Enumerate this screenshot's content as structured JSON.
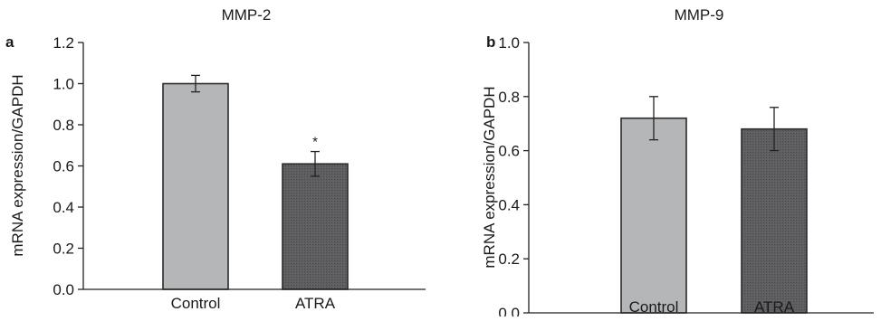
{
  "chart_data": [
    {
      "panel_label": "a",
      "type": "bar",
      "title": "MMP-2",
      "ylabel": "mRNA expression/GAPDH",
      "xlabel": "",
      "categories": [
        "Control",
        "ATRA"
      ],
      "values": [
        1.0,
        0.61
      ],
      "errors": [
        0.04,
        0.06
      ],
      "annotations": [
        "",
        "*"
      ],
      "ylim": [
        0,
        1.2
      ],
      "yticks": [
        "0.0",
        "0.2",
        "0.4",
        "0.6",
        "0.8",
        "1.0",
        "1.2"
      ],
      "bar_colors": [
        "#b5b6b8",
        "#58585a"
      ],
      "grid": false
    },
    {
      "panel_label": "b",
      "type": "bar",
      "title": "MMP-9",
      "ylabel": "mRNA expression/GAPDH",
      "xlabel": "",
      "categories": [
        "Control",
        "ATRA"
      ],
      "values": [
        0.72,
        0.68
      ],
      "errors": [
        0.08,
        0.08
      ],
      "annotations": [
        "",
        ""
      ],
      "ylim": [
        0,
        1.0
      ],
      "yticks": [
        "0.0",
        "0.2",
        "0.4",
        "0.6",
        "0.8",
        "1.0"
      ],
      "bar_colors": [
        "#b5b6b8",
        "#58585a"
      ],
      "grid": false
    }
  ]
}
